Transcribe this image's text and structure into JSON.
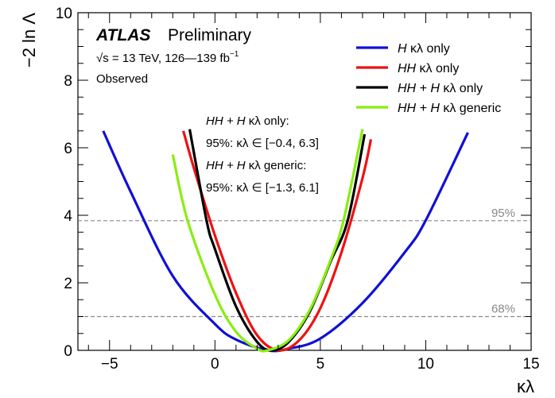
{
  "chart_data": {
    "type": "line",
    "ylabel": "−2 ln Λ",
    "xlabel": "κλ",
    "xlim": [
      -6.5,
      15
    ],
    "ylim": [
      0,
      10
    ],
    "x_ticks": [
      "−5",
      "0",
      "5",
      "10",
      "15"
    ],
    "y_ticks": [
      "0",
      "2",
      "4",
      "6",
      "8",
      "10"
    ],
    "reference_lines": [
      {
        "label": "95%",
        "y": 3.84,
        "color": "#888888"
      },
      {
        "label": "68%",
        "y": 1.0,
        "color": "#888888"
      }
    ],
    "series": [
      {
        "name_italic": "H",
        "name_rest": " κλ only",
        "color": "#1010d8",
        "x": [
          -5.3,
          -4.0,
          -2.0,
          0.0,
          1.0,
          2.5,
          3.5,
          5.0,
          7.0,
          9.0,
          10.0,
          12.0
        ],
        "y": [
          6.5,
          4.7,
          2.2,
          0.78,
          0.32,
          0.0,
          0.05,
          0.35,
          1.4,
          2.9,
          3.85,
          6.45
        ]
      },
      {
        "name_italic": "HH",
        "name_rest": " κλ only",
        "color": "#ee1111",
        "x": [
          -1.5,
          -1.0,
          0.0,
          1.0,
          2.0,
          3.0,
          4.0,
          5.0,
          6.0,
          7.0,
          7.4
        ],
        "y": [
          6.5,
          5.4,
          3.4,
          1.7,
          0.45,
          0.0,
          0.3,
          1.25,
          2.9,
          5.1,
          6.25
        ]
      },
      {
        "name_italic": "HH + H",
        "name_rest": " κλ only",
        "color": "#000000",
        "x": [
          -1.2,
          -0.4,
          0.0,
          1.0,
          2.0,
          2.7,
          3.5,
          4.5,
          5.5,
          6.3,
          7.1
        ],
        "y": [
          6.55,
          3.85,
          3.0,
          1.3,
          0.25,
          0.0,
          0.25,
          1.15,
          2.65,
          3.85,
          6.4
        ]
      },
      {
        "name_italic": "HH + H",
        "name_rest": " κλ generic",
        "color": "#88ee11",
        "x": [
          -2.0,
          -1.3,
          0.0,
          1.0,
          2.0,
          2.5,
          3.5,
          4.5,
          5.5,
          6.1,
          7.0
        ],
        "y": [
          5.8,
          3.85,
          1.65,
          0.55,
          0.05,
          0.0,
          0.3,
          1.2,
          2.7,
          3.85,
          6.55
        ]
      }
    ]
  },
  "header": {
    "atlas": "ATLAS",
    "preliminary": "Preliminary",
    "sqrt": "√s",
    "energy_lumi": " = 13 TeV, 126—139 fb",
    "lumi_exp": "−1",
    "observed": "Observed"
  },
  "annotation": {
    "line1_italic": "HH + H",
    "line1_rest": " κλ only:",
    "line2": "95%: κλ ∈ [−0.4, 6.3]",
    "line3_italic": "HH + H",
    "line3_rest": " κλ generic:",
    "line4": "95%: κλ ∈ [−1.3, 6.1]"
  }
}
